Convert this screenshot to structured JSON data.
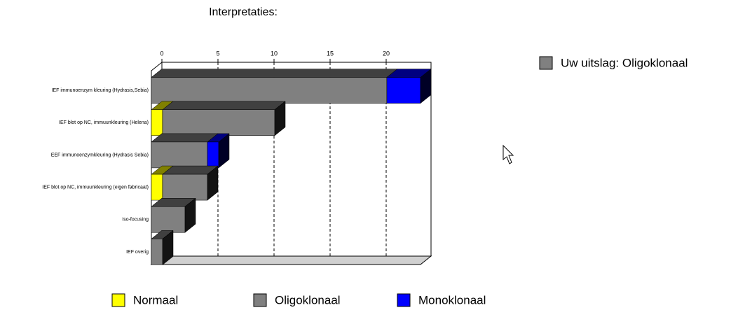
{
  "chart_data": {
    "type": "bar3d_stacked_horizontal",
    "title": "Interpretaties:",
    "annotation": "Uw uitslag:  Oligoklonaal",
    "categories": [
      "IEF immunoenzym kleuring (Hydrasis,Sebia)",
      "IEF blot op NC, immuunkleuring (Helena)",
      "EEF immunoenzymkleuring (Hydrasis Sebia)",
      "IEF blot op NC, immuunkleuring (eigen fabricaat)",
      "Iso-focusing",
      "IEF overig"
    ],
    "series": [
      {
        "name": "Normaal",
        "color": "#ffff00",
        "values": [
          0,
          1,
          0,
          1,
          0,
          0
        ]
      },
      {
        "name": "Oligoklonaal",
        "color": "#808080",
        "values": [
          21,
          10,
          5,
          4,
          3,
          1
        ]
      },
      {
        "name": "Monoklonaal",
        "color": "#0000ff",
        "values": [
          3,
          0,
          1,
          0,
          0,
          0
        ]
      }
    ],
    "xlim": [
      0,
      24
    ],
    "xticks": [
      0,
      5,
      10,
      15,
      20
    ],
    "grid": true
  }
}
